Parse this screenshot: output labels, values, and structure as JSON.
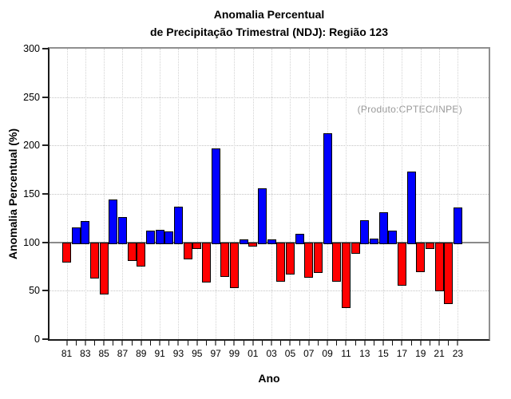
{
  "title": {
    "line1": "Anomalia Percentual",
    "line2": "de Precipitação Trimestral (NDJ): Região 123"
  },
  "annotation": "(Produto:CPTEC/INPE)",
  "axes": {
    "y_label": "Anomalia Percentual (%)",
    "x_label": "Ano",
    "y_ticks": [
      0,
      50,
      100,
      150,
      200,
      250,
      300
    ],
    "x_tick_labels": [
      "81",
      "83",
      "85",
      "87",
      "89",
      "91",
      "93",
      "95",
      "97",
      "99",
      "01",
      "03",
      "05",
      "07",
      "09",
      "11",
      "13",
      "15",
      "17",
      "19",
      "21",
      "23"
    ]
  },
  "colors": {
    "bar_positive": "#0000ff",
    "bar_negative": "#ff0000",
    "reference_line": "#8a8a8a",
    "annotation_text": "#999999"
  },
  "chart_data": {
    "type": "bar",
    "title": "Anomalia Percentual de Precipitação Trimestral (NDJ): Região 123",
    "xlabel": "Ano",
    "ylabel": "Anomalia Percentual (%)",
    "ylim": [
      0,
      300
    ],
    "baseline": 100,
    "grid": true,
    "legend": false,
    "categories": [
      "81",
      "82",
      "83",
      "84",
      "85",
      "86",
      "87",
      "88",
      "89",
      "90",
      "91",
      "92",
      "93",
      "94",
      "95",
      "96",
      "97",
      "98",
      "99",
      "00",
      "01",
      "02",
      "03",
      "04",
      "05",
      "06",
      "07",
      "08",
      "09",
      "10",
      "11",
      "12",
      "13",
      "14",
      "15",
      "16",
      "17",
      "18",
      "19",
      "20",
      "21",
      "22",
      "23"
    ],
    "values": [
      81,
      115,
      122,
      64,
      48,
      144,
      126,
      82,
      77,
      112,
      113,
      111,
      137,
      84,
      95,
      60,
      197,
      66,
      54,
      103,
      97,
      156,
      103,
      61,
      68,
      109,
      65,
      70,
      213,
      61,
      34,
      90,
      123,
      104,
      131,
      112,
      57,
      173,
      71,
      95,
      51,
      38,
      136
    ]
  }
}
